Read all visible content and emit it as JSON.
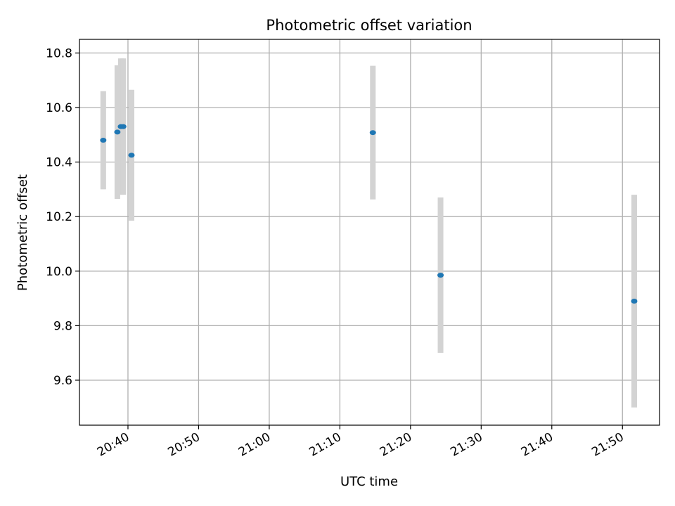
{
  "chart_data": {
    "type": "scatter",
    "title": "Photometric offset variation",
    "xlabel": "UTC time",
    "ylabel": "Photometric offset",
    "x_ticks": [
      "20:40",
      "20:50",
      "21:00",
      "21:10",
      "21:20",
      "21:30",
      "21:40",
      "21:50"
    ],
    "y_ticks": [
      "9.6",
      "9.8",
      "10.0",
      "10.2",
      "10.4",
      "10.6",
      "10.8"
    ],
    "xlim": [
      "20:33:08",
      "21:55:15"
    ],
    "ylim": [
      9.435,
      10.85
    ],
    "grid": true,
    "colors": {
      "point": "#1f77b4",
      "errorbar": "#d3d3d3",
      "grid": "#b0b0b0"
    },
    "points": [
      {
        "x": "20:36:30",
        "y": 10.48,
        "yerr": 0.18
      },
      {
        "x": "20:38:30",
        "y": 10.51,
        "yerr": 0.245
      },
      {
        "x": "20:39:00",
        "y": 10.53,
        "yerr": 0.25
      },
      {
        "x": "20:39:20",
        "y": 10.53,
        "yerr": 0.25
      },
      {
        "x": "20:40:30",
        "y": 10.425,
        "yerr": 0.24
      },
      {
        "x": "21:14:40",
        "y": 10.508,
        "yerr": 0.245
      },
      {
        "x": "21:24:15",
        "y": 9.985,
        "yerr": 0.285
      },
      {
        "x": "21:51:40",
        "y": 9.89,
        "yerr": 0.39
      }
    ]
  }
}
